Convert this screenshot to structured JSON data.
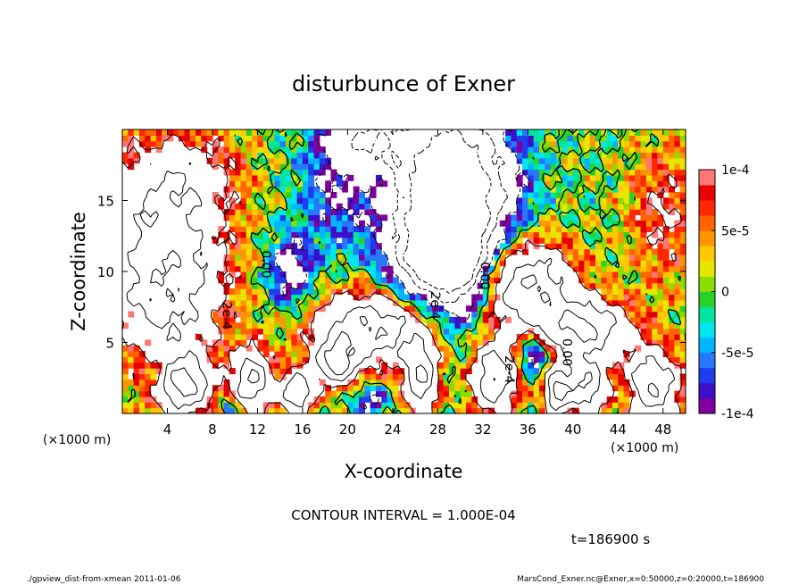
{
  "chart_data": {
    "type": "heatmap",
    "title": "disturbunce of Exner",
    "xlabel": "X-coordinate",
    "ylabel": "Z-coordinate",
    "x_unit": "(×1000 m)",
    "x_unit_right": "(×1000 m)",
    "y_unit": "(×1000 m)",
    "xlim": [
      0,
      50
    ],
    "ylim": [
      0,
      20
    ],
    "x_ticks": [
      4,
      8,
      12,
      16,
      20,
      24,
      28,
      32,
      36,
      40,
      44,
      48
    ],
    "y_ticks": [
      5,
      10,
      15
    ],
    "colorbar": {
      "min": -0.0001,
      "max": 0.0001,
      "ticks": [
        {
          "value": 0.0001,
          "label": "1e-4"
        },
        {
          "value": 5e-05,
          "label": "5e-5"
        },
        {
          "value": 0,
          "label": "0"
        },
        {
          "value": -5e-05,
          "label": "-5e-5"
        },
        {
          "value": -0.0001,
          "label": "-1e-4"
        }
      ],
      "colors": [
        "#8000a0",
        "#3c0fc8",
        "#1e3cf0",
        "#2878ff",
        "#00b4ff",
        "#00e6f0",
        "#00e6a0",
        "#28d228",
        "#8cdc00",
        "#e6e600",
        "#ffc800",
        "#ff9600",
        "#ff6400",
        "#ff2800",
        "#e60000",
        "#ff7878"
      ]
    },
    "contour_interval_text": "CONTOUR INTERVAL = 1.000E-04",
    "time_text": "t=186900 s",
    "contour_labels": [
      {
        "text": "0.00",
        "x": 12.4,
        "z": 10.5
      },
      {
        "text": "2e-4",
        "x": 8.9,
        "z": 6.9
      },
      {
        "text": "2e-4",
        "x": 27.4,
        "z": 7.6
      },
      {
        "text": "0.00",
        "x": 31.8,
        "z": 9.7
      },
      {
        "text": "2e-4",
        "x": 34.0,
        "z": 3.1
      },
      {
        "text": "0.00",
        "x": 39.1,
        "z": 4.3
      }
    ],
    "blobs": [
      {
        "x": 28.5,
        "z": 16.0,
        "rx": 4.8,
        "rz": 6.0,
        "v": -0.0004
      },
      {
        "x": 28.0,
        "z": 11.0,
        "rx": 3.5,
        "rz": 3.0,
        "v": -0.0003
      },
      {
        "x": 30.2,
        "z": 13.0,
        "rx": 2.3,
        "rz": 6.0,
        "v": -0.0002
      },
      {
        "x": 15.0,
        "z": 10.0,
        "rx": 2.0,
        "rz": 2.5,
        "v": -0.00015
      },
      {
        "x": 21.5,
        "z": 19.5,
        "rx": 3.5,
        "rz": 2.0,
        "v": -0.00015
      },
      {
        "x": 19.0,
        "z": 16.0,
        "rx": 3.0,
        "rz": 4.0,
        "v": -0.0001
      },
      {
        "x": 34.0,
        "z": 16.0,
        "rx": 2.5,
        "rz": 4.0,
        "v": -6e-05
      },
      {
        "x": 4.0,
        "z": 10.0,
        "rx": 5.0,
        "rz": 6.0,
        "v": 0.0003
      },
      {
        "x": 3.0,
        "z": 17.0,
        "rx": 5.0,
        "rz": 3.0,
        "v": 0.0001
      },
      {
        "x": 48.0,
        "z": 14.0,
        "rx": 3.0,
        "rz": 5.0,
        "v": 0.0001
      },
      {
        "x": 8.0,
        "z": 17.0,
        "rx": 3.5,
        "rz": 3.0,
        "v": 6e-05
      },
      {
        "x": 36.0,
        "z": 9.0,
        "rx": 4.0,
        "rz": 3.0,
        "v": 0.0003
      },
      {
        "x": 41.0,
        "z": 6.0,
        "rx": 4.0,
        "rz": 2.0,
        "v": 0.0003
      },
      {
        "x": 22.0,
        "z": 6.0,
        "rx": 5.0,
        "rz": 2.5,
        "v": 0.0003
      },
      {
        "x": 5.5,
        "z": 2.0,
        "rx": 2.5,
        "rz": 2.0,
        "v": 0.0003
      },
      {
        "x": 11.5,
        "z": 2.3,
        "rx": 1.7,
        "rz": 2.2,
        "v": 0.0003
      },
      {
        "x": 15.5,
        "z": 1.5,
        "rx": 1.5,
        "rz": 1.5,
        "v": 0.0003
      },
      {
        "x": 19.0,
        "z": 3.5,
        "rx": 1.8,
        "rz": 1.5,
        "v": 0.0003
      },
      {
        "x": 26.5,
        "z": 2.5,
        "rx": 1.5,
        "rz": 2.5,
        "v": 0.0003
      },
      {
        "x": 33.0,
        "z": 2.5,
        "rx": 2.0,
        "rz": 2.5,
        "v": 0.0003
      },
      {
        "x": 38.5,
        "z": 1.5,
        "rx": 1.0,
        "rz": 1.5,
        "v": 0.0003
      },
      {
        "x": 41.0,
        "z": 2.0,
        "rx": 2.0,
        "rz": 2.0,
        "v": 0.0003
      },
      {
        "x": 47.0,
        "z": 2.0,
        "rx": 2.5,
        "rz": 2.5,
        "v": 0.0003
      },
      {
        "x": 22.0,
        "z": 1.0,
        "rx": 1.5,
        "rz": 1.0,
        "v": -0.00012
      },
      {
        "x": 9.5,
        "z": 0.5,
        "rx": 1.0,
        "rz": 0.8,
        "v": -0.0001
      },
      {
        "x": 36.5,
        "z": 4.2,
        "rx": 1.2,
        "rz": 1.2,
        "v": -0.0002
      },
      {
        "x": 3.0,
        "z": 3.0,
        "rx": 1.0,
        "rz": 1.5,
        "v": -8e-05
      },
      {
        "x": 44.5,
        "z": 1.5,
        "rx": 1.0,
        "rz": 1.2,
        "v": -8e-05
      }
    ],
    "grid": false
  },
  "footer": {
    "left": "./gpview_dist-from-xmean  2011-01-06",
    "right": "MarsCond_Exner.nc@Exner,x=0:50000,z=0:20000,t=186900"
  }
}
